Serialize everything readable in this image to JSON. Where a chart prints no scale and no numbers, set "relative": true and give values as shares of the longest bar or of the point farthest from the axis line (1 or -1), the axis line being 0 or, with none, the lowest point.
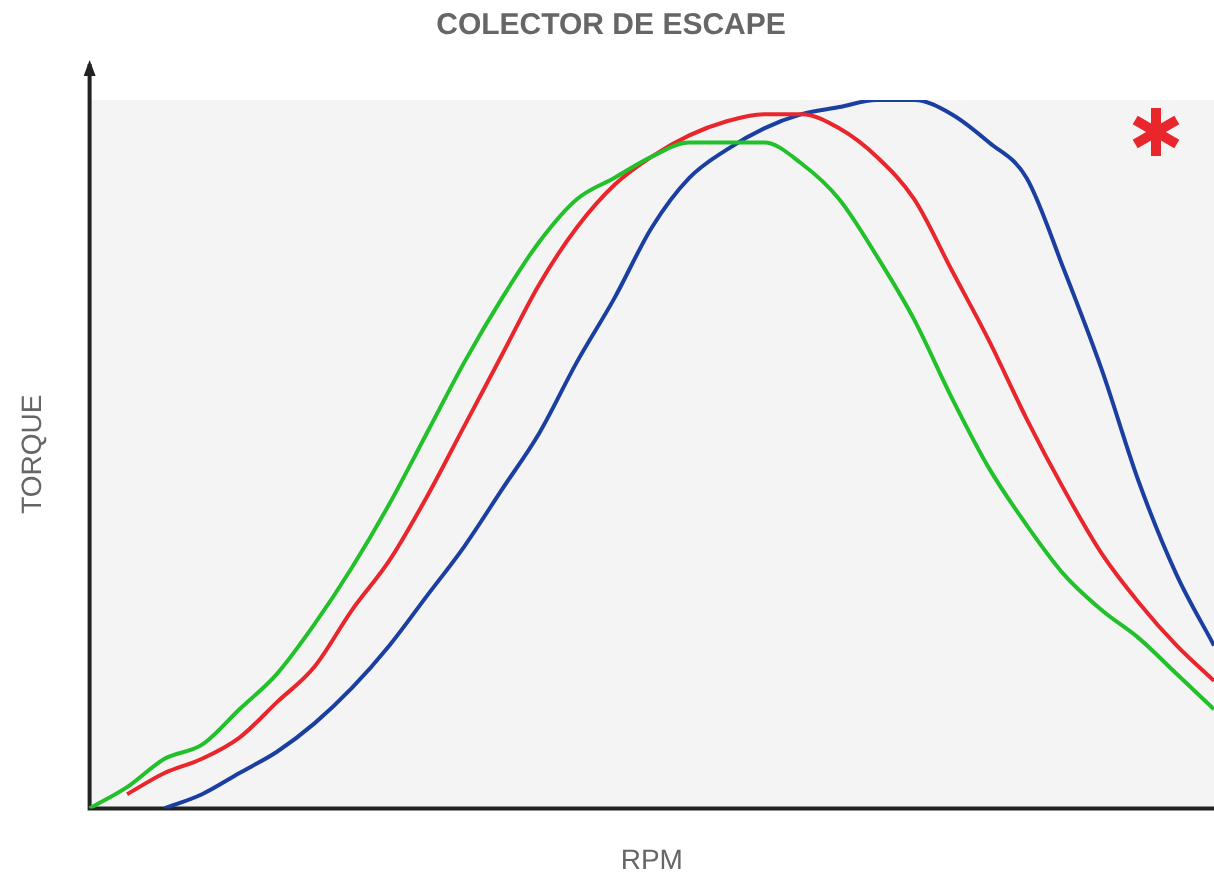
{
  "chart_data": {
    "type": "line",
    "title": "COLECTOR DE ESCAPE",
    "xlabel": "RPM",
    "ylabel": "TORQUE",
    "relative": true,
    "marker": "none",
    "line_style": "solid",
    "grid": false,
    "legend": false,
    "categories": [
      null,
      null,
      null,
      null,
      null,
      null,
      null,
      null,
      null,
      null,
      null,
      null,
      null,
      null,
      null,
      null,
      null,
      null,
      null,
      null,
      null,
      null,
      null,
      null,
      null,
      null,
      null,
      null,
      null,
      null,
      null
    ],
    "series": [
      {
        "color": "#22c02a",
        "values": [
          0,
          0.03,
          0.07,
          0.09,
          0.14,
          0.19,
          0.26,
          0.34,
          0.43,
          0.53,
          0.63,
          0.72,
          0.8,
          0.86,
          0.89,
          0.92,
          0.94,
          0.94,
          0.94,
          0.91,
          0.86,
          0.78,
          0.69,
          0.58,
          0.48,
          0.4,
          0.33,
          0.28,
          0.24,
          0.19,
          0.14
        ]
      },
      {
        "color": "#e8262b",
        "values": [
          null,
          0.02,
          0.05,
          0.07,
          0.1,
          0.15,
          0.2,
          0.28,
          0.35,
          0.44,
          0.54,
          0.64,
          0.74,
          0.82,
          0.88,
          0.92,
          0.95,
          0.97,
          0.98,
          0.98,
          0.96,
          0.92,
          0.86,
          0.76,
          0.66,
          0.55,
          0.45,
          0.36,
          0.29,
          0.23,
          0.18
        ]
      },
      {
        "color": "#1a3fa0",
        "values": [
          null,
          null,
          0,
          0.02,
          0.05,
          0.08,
          0.12,
          0.17,
          0.23,
          0.3,
          0.37,
          0.45,
          0.53,
          0.63,
          0.72,
          0.82,
          0.89,
          0.93,
          0.96,
          0.98,
          0.99,
          1,
          1,
          0.98,
          0.94,
          0.89,
          0.76,
          0.62,
          0.46,
          0.33,
          0.23
        ]
      }
    ]
  }
}
